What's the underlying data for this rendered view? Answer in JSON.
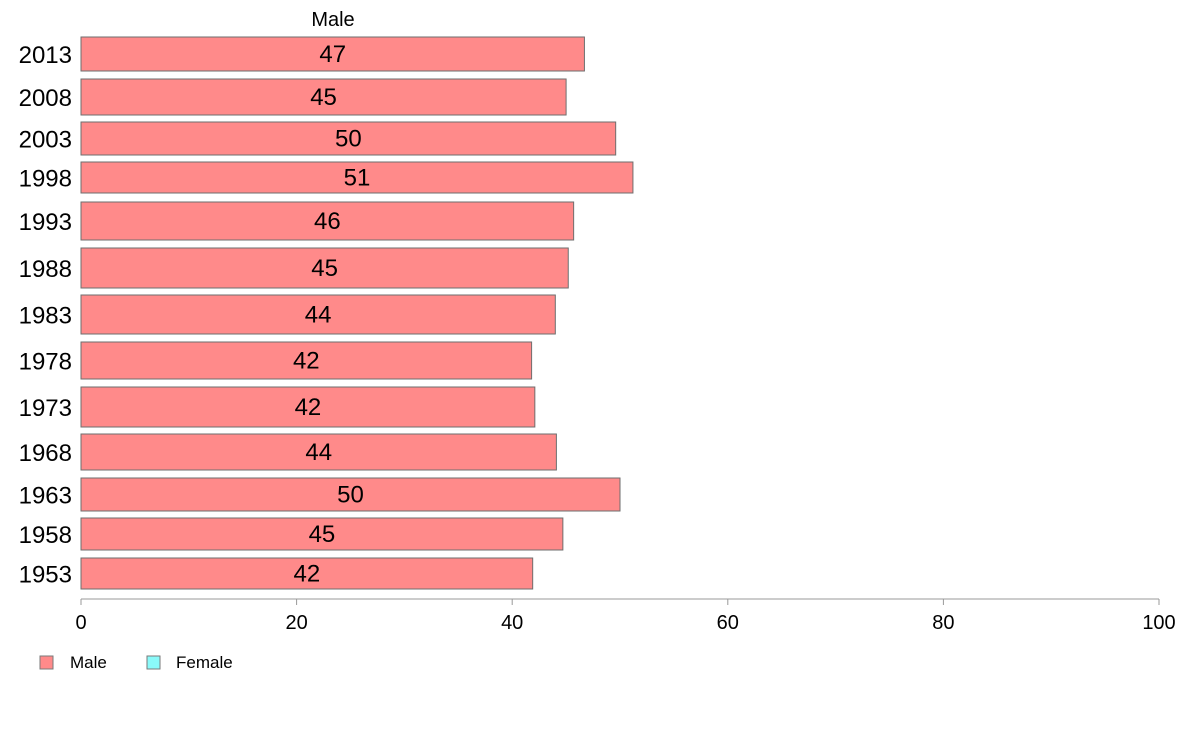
{
  "chart_data": {
    "type": "bar",
    "orientation": "horizontal",
    "series_title": "Male",
    "categories": [
      "2013",
      "2008",
      "2003",
      "1998",
      "1993",
      "1988",
      "1983",
      "1978",
      "1973",
      "1968",
      "1963",
      "1958",
      "1953"
    ],
    "series": [
      {
        "name": "Male",
        "color": "#ff8a8a",
        "values": [
          46.7,
          45.0,
          49.6,
          51.2,
          45.7,
          45.2,
          44.0,
          41.8,
          42.1,
          44.1,
          50.0,
          44.7,
          41.9
        ],
        "labels": [
          "47",
          "45",
          "50",
          "51",
          "46",
          "45",
          "44",
          "42",
          "42",
          "44",
          "50",
          "45",
          "42"
        ]
      }
    ],
    "xlim": [
      0,
      100
    ],
    "x_ticks": [
      0,
      20,
      40,
      60,
      80,
      100
    ],
    "x_tick_labels": [
      "0",
      "20",
      "40",
      "60",
      "80",
      "100"
    ],
    "grid": false,
    "legend": {
      "position": "bottom-left",
      "entries": [
        {
          "label": "Male",
          "color": "#ff8a8a"
        },
        {
          "label": "Female",
          "color": "#8afafa"
        }
      ]
    }
  }
}
